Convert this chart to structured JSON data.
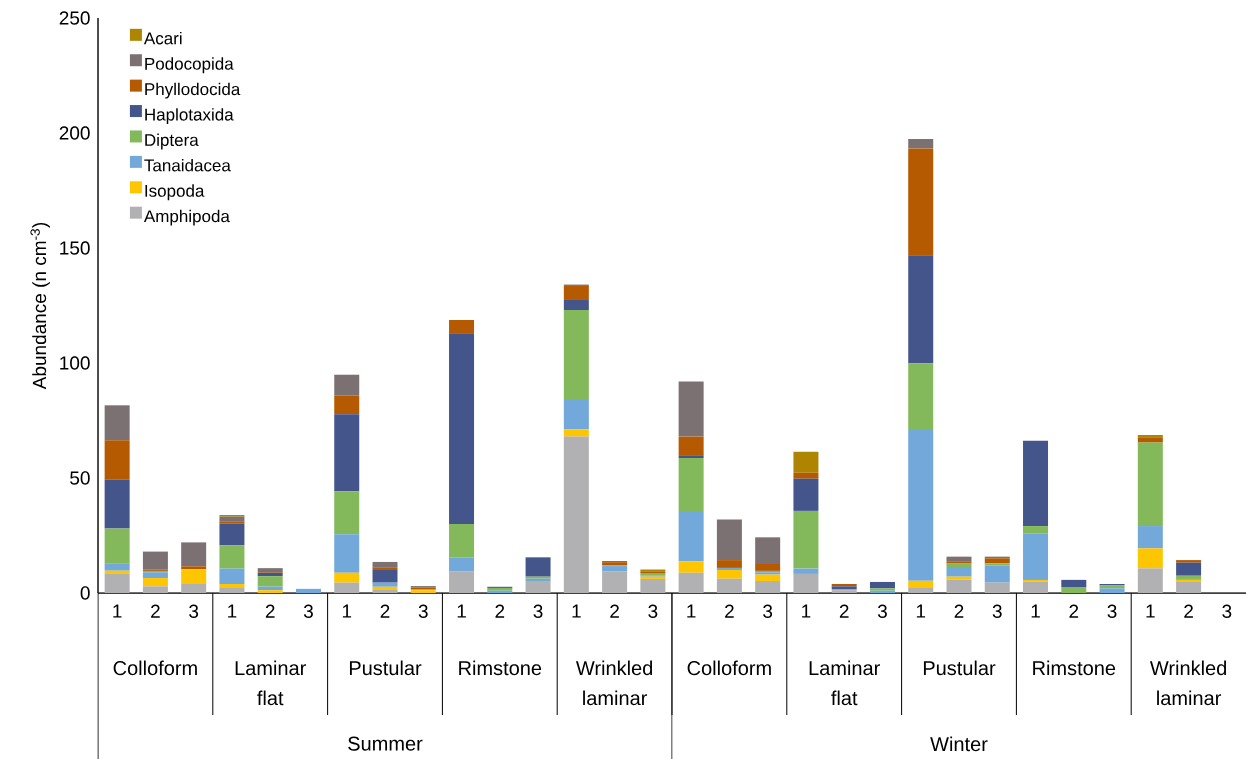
{
  "chart_data": {
    "type": "bar",
    "stacked": true,
    "ylabel": "Abundance (n cm$^{-3}$)",
    "categories": [
      "1",
      "2",
      "3",
      "1",
      "2",
      "3",
      "1",
      "2",
      "3",
      "1",
      "2",
      "3",
      "1",
      "2",
      "3",
      "1",
      "2",
      "3",
      "1",
      "2",
      "3",
      "1",
      "2",
      "3",
      "1",
      "2",
      "3",
      "1",
      "2",
      "3"
    ],
    "ylim": [
      0,
      250
    ],
    "yticks": [
      0,
      50,
      100,
      150,
      200,
      250
    ],
    "legend": "top left",
    "annotations": [
      "Colloform",
      "Laminar flat",
      "Pustular",
      "Rimstone",
      "Wrinkled laminar",
      "Colloform",
      "Laminar flat",
      "Pustular",
      "Rimstone",
      "Wrinkled laminar",
      "Summer",
      "Winter"
    ],
    "series": [
      {
        "name": "Amphipoda",
        "color": "#b1b0b2",
        "values": [
          8.3,
          2.9,
          3.9,
          2.5,
          null,
          0,
          4.5,
          1.3,
          null,
          9.3,
          0,
          5.2,
          68.0,
          9.3,
          6.1,
          8.8,
          6.2,
          5.2,
          8.3,
          1.2,
          0,
          2.5,
          5.8,
          4.5,
          4.9,
          0,
          0,
          10.7,
          5.1,
          0
        ]
      },
      {
        "name": "Isopoda",
        "color": "#fec600",
        "values": [
          1.4,
          3.6,
          6.4,
          1.4,
          1.2,
          0,
          4.3,
          1.4,
          1.2,
          0,
          0,
          0,
          3.2,
          null,
          1.0,
          5.0,
          3.8,
          2.8,
          0,
          0,
          0,
          2.8,
          1.3,
          0,
          0.8,
          0,
          0,
          8.7,
          0.6,
          0
        ]
      },
      {
        "name": "Tanaidacea",
        "color": "#72a8da",
        "values": [
          3.0,
          2.5,
          null,
          6.7,
          1.6,
          1.8,
          16.7,
          1.8,
          0,
          6.2,
          1.0,
          1.0,
          12.7,
          2.4,
          0.6,
          21.9,
          0.9,
          1.0,
          2.3,
          0.5,
          1.0,
          66.0,
          4.2,
          7.5,
          20.3,
          0,
          2.0,
          9.7,
          0.4,
          0
        ]
      },
      {
        "name": "Diptera",
        "color": "#83b95a",
        "values": [
          15.3,
          0.6,
          0,
          10.1,
          4.5,
          0,
          18.7,
          null,
          0.5,
          14.5,
          1.2,
          0.9,
          39.1,
          0.4,
          1.0,
          23.0,
          0,
          0.6,
          25.1,
          0,
          1.0,
          28.6,
          1.5,
          0.9,
          3.1,
          2.6,
          1.4,
          36.3,
          1.4,
          0
        ]
      },
      {
        "name": "Haplotaxida",
        "color": "#44558c",
        "values": [
          21.2,
          0,
          0,
          9.4,
          1.5,
          0,
          33.5,
          5.5,
          0,
          82.9,
          0.5,
          8.4,
          4.4,
          0,
          0,
          0.9,
          0,
          0,
          14.0,
          1.2,
          2.8,
          46.9,
          0,
          0,
          37.1,
          3.1,
          0.5,
          0,
          5.7,
          0
        ]
      },
      {
        "name": "Phyllodocida",
        "color": "#b55a00",
        "values": [
          17.2,
          0.5,
          1.3,
          1.1,
          0.3,
          0,
          8.1,
          1.2,
          0.6,
          5.8,
          0,
          0,
          6.1,
          1.3,
          0.5,
          8.4,
          3.4,
          3.0,
          2.6,
          1.0,
          0,
          46.5,
          1.0,
          2.2,
          0,
          0,
          0,
          2.3,
          1.1,
          0
        ]
      },
      {
        "name": "Podocopida",
        "color": "#7b7173",
        "values": [
          15.2,
          7.9,
          10.4,
          2.0,
          1.7,
          0,
          9.1,
          2.3,
          0.7,
          0,
          0,
          0,
          0.6,
          0.5,
          0,
          24.0,
          17.7,
          11.6,
          0,
          0,
          0,
          4.1,
          2.0,
          0.7,
          0,
          0,
          0,
          0,
          0,
          0
        ]
      },
      {
        "name": "Acari",
        "color": "#ae8500",
        "values": [
          0,
          0,
          0,
          0.7,
          0,
          0,
          0,
          0,
          0,
          0,
          0,
          0,
          0,
          0,
          1.0,
          0,
          0,
          0,
          9.1,
          0,
          0,
          0,
          0,
          0,
          0,
          0,
          0,
          1.0,
          0,
          0
        ]
      }
    ]
  }
}
